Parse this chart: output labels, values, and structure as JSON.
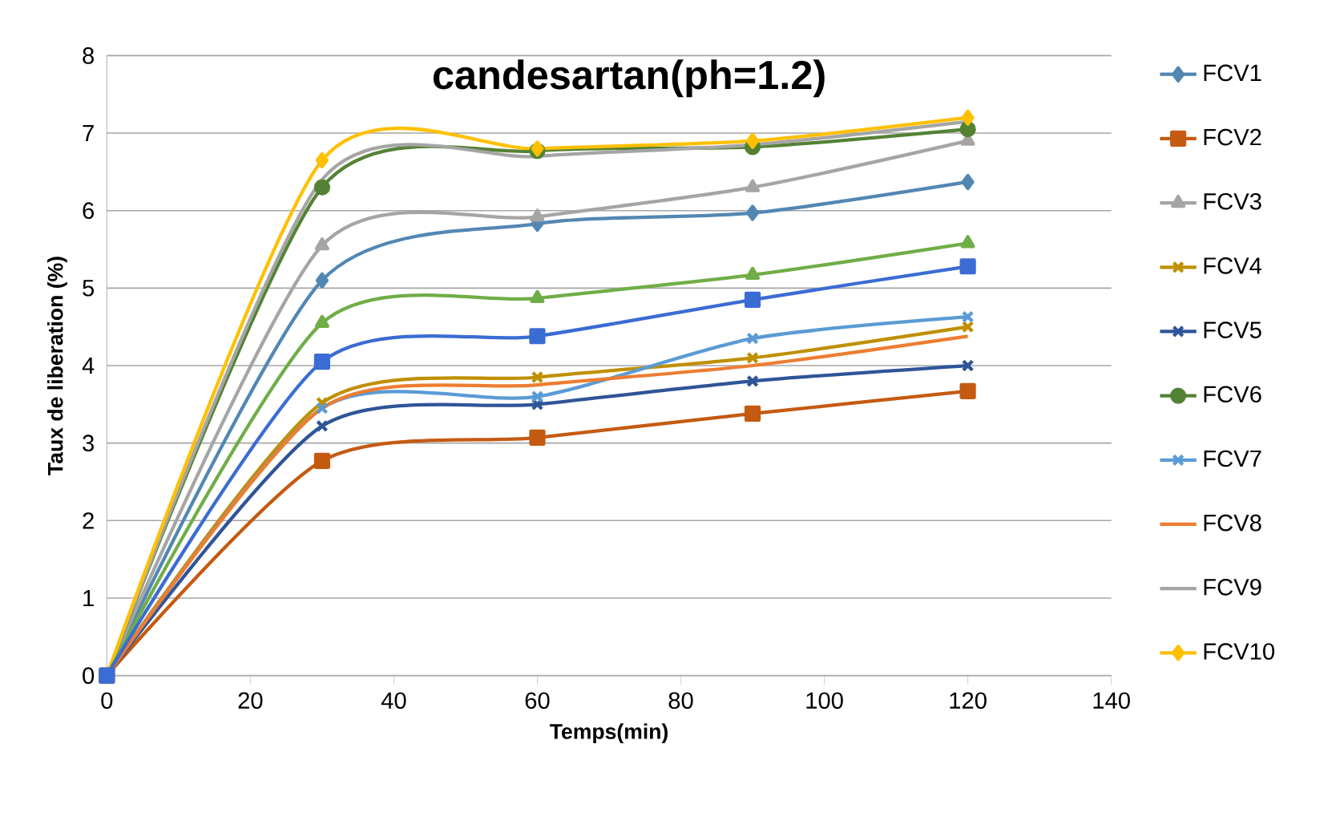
{
  "chart_data": {
    "type": "line",
    "title": "candesartan(ph=1.2)",
    "xlabel": "Temps(min)",
    "ylabel": "Taux de liberation (%)",
    "x": [
      0,
      30,
      60,
      90,
      120
    ],
    "xlim": [
      0,
      140
    ],
    "xticks": [
      0,
      20,
      40,
      60,
      80,
      100,
      120,
      140
    ],
    "ylim": [
      0,
      8
    ],
    "yticks": [
      0,
      1,
      2,
      3,
      4,
      5,
      6,
      7,
      8
    ],
    "grid": "y",
    "legend": "right",
    "series": [
      {
        "name": "FCV1",
        "color": "#5387b3",
        "marker": "diamond",
        "values": [
          0,
          5.1,
          5.83,
          5.97,
          6.37
        ]
      },
      {
        "name": "FCV2",
        "color": "#c55a11",
        "marker": "square",
        "values": [
          0,
          2.77,
          3.07,
          3.38,
          3.67
        ]
      },
      {
        "name": "FCV3",
        "color": "#a5a5a5",
        "marker": "triangle",
        "values": [
          0,
          5.55,
          5.92,
          6.3,
          6.9
        ]
      },
      {
        "name": "FCV4",
        "color": "#bf9000",
        "marker": "cross",
        "values": [
          0,
          3.52,
          3.85,
          4.1,
          4.5
        ]
      },
      {
        "name": "FCV5",
        "color": "#2f5597",
        "marker": "cross",
        "values": [
          0,
          3.22,
          3.5,
          3.8,
          4.0
        ]
      },
      {
        "name": "FCV6",
        "color": "#548235",
        "marker": "circle",
        "values": [
          0,
          6.3,
          6.77,
          6.82,
          7.05
        ]
      },
      {
        "name": "FCV7",
        "color": "#5b9bd5",
        "marker": "cross",
        "values": [
          0,
          3.45,
          3.6,
          4.35,
          4.63
        ]
      },
      {
        "name": "FCV8",
        "color": "#ed7d31",
        "marker": "none",
        "values": [
          0,
          3.45,
          3.75,
          4.0,
          4.38
        ]
      },
      {
        "name": "FCV9",
        "color": "#a5a5a5",
        "marker": "none",
        "values": [
          0,
          6.4,
          6.7,
          6.85,
          7.15
        ]
      },
      {
        "name": "FCV10",
        "color": "#ffc000",
        "marker": "diamond",
        "values": [
          0,
          6.65,
          6.8,
          6.9,
          7.2
        ]
      },
      {
        "color": "#70ad47",
        "marker": "triangle",
        "values": [
          0,
          4.55,
          4.87,
          5.17,
          5.58
        ]
      },
      {
        "color": "#3b6cd4",
        "marker": "square",
        "values": [
          0,
          4.05,
          4.38,
          4.85,
          5.28
        ]
      }
    ]
  }
}
